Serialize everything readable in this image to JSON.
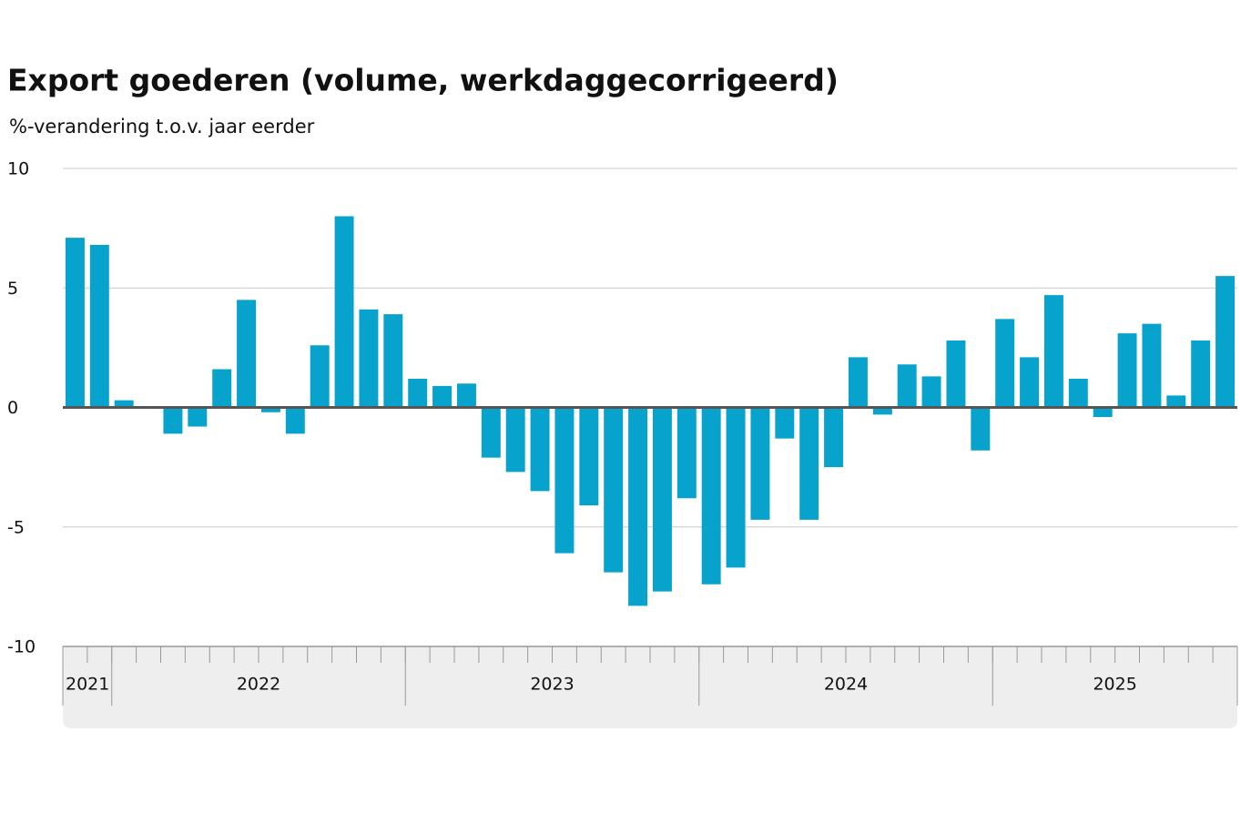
{
  "chart_data": {
    "type": "bar",
    "title": "Export goederen (volume, werkdaggecorrigeerd)",
    "subtitle": "%-verandering t.o.v. jaar eerder",
    "categories": [
      null,
      null,
      null,
      null,
      null,
      null,
      null,
      null,
      null,
      null,
      null,
      null,
      null,
      null,
      null,
      null,
      null,
      null,
      null,
      null,
      null,
      null,
      null,
      null,
      null,
      null,
      null,
      null,
      null,
      null,
      null,
      null,
      null,
      null,
      null,
      null,
      null,
      null,
      null,
      null,
      null,
      null,
      null,
      null,
      null,
      null,
      null,
      null
    ],
    "x_groups": [
      {
        "label": "2021",
        "months": 2
      },
      {
        "label": "2022",
        "months": 12
      },
      {
        "label": "2023",
        "months": 12
      },
      {
        "label": "2024",
        "months": 12
      },
      {
        "label": "2025",
        "months": 10
      }
    ],
    "values": [
      7.1,
      6.8,
      0.3,
      0,
      -1.1,
      -0.8,
      1.6,
      4.5,
      -0.2,
      -1.1,
      2.6,
      8.0,
      4.1,
      3.9,
      1.2,
      0.9,
      1.0,
      -2.1,
      -2.7,
      -3.5,
      -6.1,
      -4.1,
      -6.9,
      -8.3,
      -7.7,
      -3.8,
      -7.4,
      -6.7,
      -4.7,
      -1.3,
      -4.7,
      -2.5,
      2.1,
      -0.3,
      1.8,
      1.3,
      2.8,
      -1.8,
      3.7,
      2.1,
      4.7,
      1.2,
      -0.4,
      3.1,
      3.5,
      0.5,
      2.8,
      5.5
    ],
    "color": "#08a3cc",
    "ylim": [
      -10,
      10
    ],
    "yticks": [
      -10,
      -5,
      0,
      5,
      10
    ],
    "grid": true
  }
}
